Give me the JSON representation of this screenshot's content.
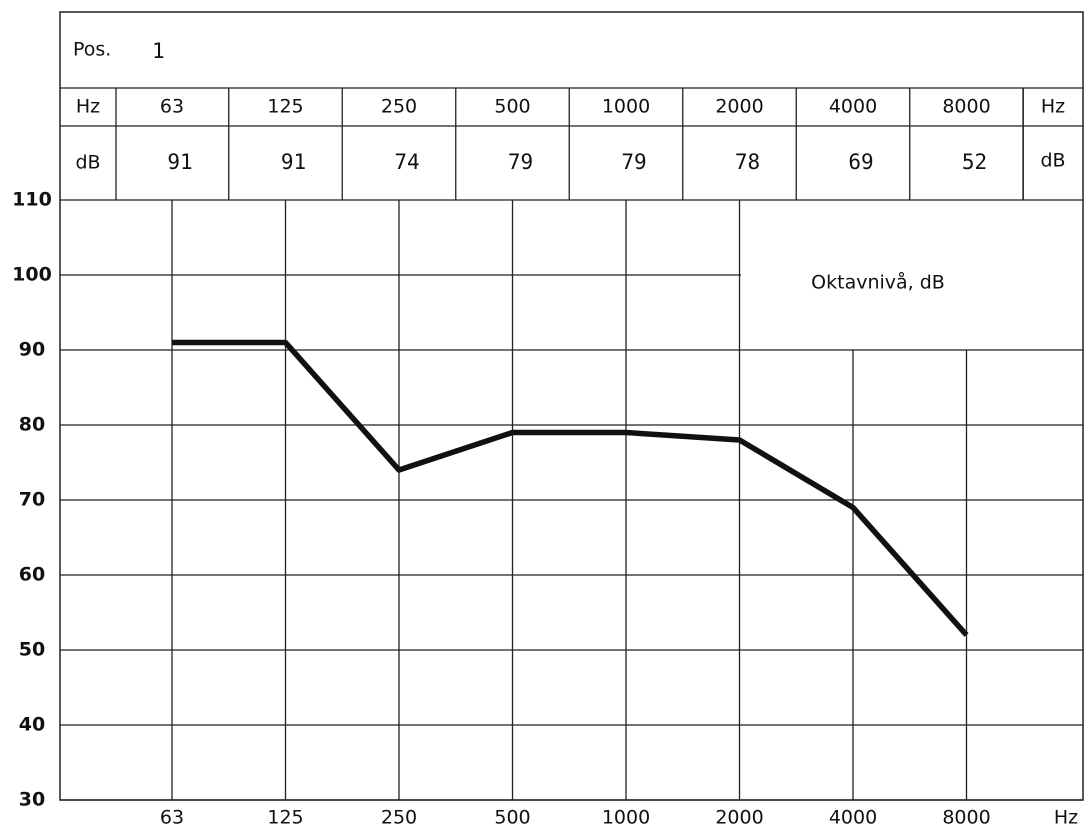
{
  "table": {
    "pos_label": "Pos.",
    "pos_value": "1",
    "hz_label": "Hz",
    "db_label": "dB"
  },
  "chart_data": {
    "type": "line",
    "categories": [
      "63",
      "125",
      "250",
      "500",
      "1000",
      "2000",
      "4000",
      "8000"
    ],
    "series": [
      {
        "color": "#111111",
        "values": [
          91,
          91,
          74,
          79,
          79,
          78,
          69,
          52
        ]
      }
    ],
    "annotation": "Oktavnivå, dB",
    "x_label": "Hz",
    "ylim": [
      30,
      110
    ],
    "yticks": [
      30,
      40,
      50,
      60,
      70,
      80,
      90,
      100,
      110
    ],
    "grid": true
  }
}
